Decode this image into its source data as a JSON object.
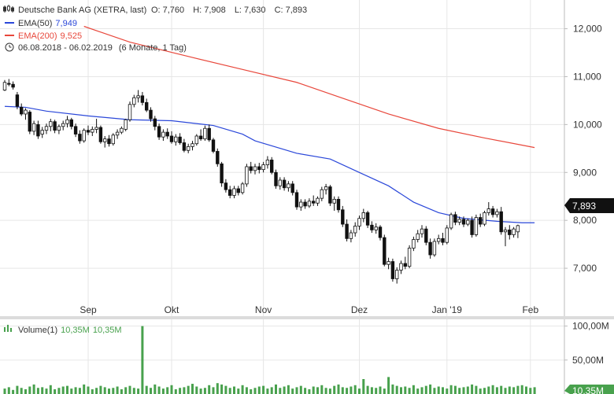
{
  "header": {
    "title": "Deutsche Bank AG (XETRA, last)",
    "ohlc": {
      "o_label": "O:",
      "o": "7,760",
      "h_label": "H:",
      "h": "7,908",
      "l_label": "L:",
      "l": "7,630",
      "c_label": "C:",
      "c": "7,893"
    },
    "ema50_label": "EMA(50)",
    "ema50_value": "7,949",
    "ema200_label": "EMA(200)",
    "ema200_value": "9,525",
    "period": "06.08.2018 - 06.02.2019",
    "period_detail": "(6 Monate, 1 Tag)"
  },
  "volume_header": {
    "label": "Volume(1)",
    "value1": "10,35M",
    "value2": "10,35M"
  },
  "colors": {
    "ema50": "#2a47d9",
    "ema200": "#e8473b",
    "volume": "#48a14d",
    "candle": "#111111",
    "grid": "#e6e6e6",
    "badge": "#111111"
  },
  "chart_data": {
    "type": "line",
    "price_axis": {
      "ticks": [
        "7,000",
        "8,000",
        "9,000",
        "10,000",
        "11,000",
        "12,000"
      ],
      "ylim": [
        6.0,
        12.6
      ]
    },
    "volume_axis": {
      "ticks": [
        "50,00M",
        "100,00M"
      ]
    },
    "x_ticks": [
      "Sep",
      "Okt",
      "Nov",
      "Dez",
      "Jan '19",
      "Feb"
    ],
    "last_price_badge": "7,893",
    "volume_badge": "10,35M",
    "candles": [
      [
        10.72,
        10.93,
        10.7,
        10.88
      ],
      [
        10.86,
        10.95,
        10.8,
        10.84
      ],
      [
        10.84,
        10.9,
        10.73,
        10.78
      ],
      [
        10.62,
        10.68,
        10.32,
        10.38
      ],
      [
        10.36,
        10.44,
        10.18,
        10.22
      ],
      [
        10.22,
        10.34,
        10.1,
        10.3
      ],
      [
        10.26,
        10.3,
        9.8,
        9.86
      ],
      [
        9.86,
        10.08,
        9.78,
        10.02
      ],
      [
        10.0,
        10.08,
        9.7,
        9.76
      ],
      [
        9.8,
        9.95,
        9.72,
        9.88
      ],
      [
        9.88,
        10.02,
        9.8,
        9.96
      ],
      [
        9.96,
        10.12,
        9.86,
        10.06
      ],
      [
        10.06,
        10.1,
        9.82,
        9.88
      ],
      [
        9.88,
        10.0,
        9.8,
        9.96
      ],
      [
        9.96,
        10.08,
        9.88,
        10.02
      ],
      [
        10.02,
        10.18,
        9.94,
        10.1
      ],
      [
        10.1,
        10.14,
        9.9,
        9.96
      ],
      [
        9.96,
        10.02,
        9.74,
        9.8
      ],
      [
        9.8,
        9.88,
        9.6,
        9.66
      ],
      [
        9.66,
        9.92,
        9.62,
        9.88
      ],
      [
        9.88,
        9.98,
        9.78,
        9.84
      ],
      [
        9.84,
        9.96,
        9.76,
        9.9
      ],
      [
        9.9,
        10.12,
        9.82,
        9.94
      ],
      [
        9.94,
        9.98,
        9.6,
        9.64
      ],
      [
        9.64,
        9.76,
        9.52,
        9.7
      ],
      [
        9.7,
        9.78,
        9.54,
        9.6
      ],
      [
        9.6,
        9.82,
        9.56,
        9.78
      ],
      [
        9.78,
        9.9,
        9.7,
        9.84
      ],
      [
        9.84,
        9.96,
        9.8,
        9.92
      ],
      [
        9.9,
        10.12,
        9.86,
        10.1
      ],
      [
        10.1,
        10.48,
        10.06,
        10.42
      ],
      [
        10.42,
        10.62,
        10.36,
        10.56
      ],
      [
        10.56,
        10.72,
        10.46,
        10.6
      ],
      [
        10.6,
        10.68,
        10.4,
        10.46
      ],
      [
        10.46,
        10.54,
        10.26,
        10.3
      ],
      [
        10.3,
        10.36,
        10.06,
        10.12
      ],
      [
        10.12,
        10.18,
        9.88,
        9.96
      ],
      [
        9.96,
        10.02,
        9.68,
        9.74
      ],
      [
        9.74,
        9.9,
        9.66,
        9.84
      ],
      [
        9.84,
        9.92,
        9.7,
        9.76
      ],
      [
        9.76,
        9.86,
        9.6,
        9.64
      ],
      [
        9.64,
        9.8,
        9.56,
        9.74
      ],
      [
        9.74,
        9.82,
        9.58,
        9.62
      ],
      [
        9.62,
        9.7,
        9.42,
        9.46
      ],
      [
        9.46,
        9.6,
        9.4,
        9.54
      ],
      [
        9.54,
        9.66,
        9.46,
        9.6
      ],
      [
        9.6,
        9.8,
        9.56,
        9.76
      ],
      [
        9.76,
        9.9,
        9.66,
        9.7
      ],
      [
        9.7,
        9.98,
        9.66,
        9.92
      ],
      [
        9.92,
        10.0,
        9.64,
        9.68
      ],
      [
        9.68,
        9.72,
        9.4,
        9.44
      ],
      [
        9.44,
        9.5,
        9.12,
        9.18
      ],
      [
        9.18,
        9.22,
        8.7,
        8.78
      ],
      [
        8.78,
        8.86,
        8.58,
        8.64
      ],
      [
        8.64,
        8.72,
        8.46,
        8.52
      ],
      [
        8.52,
        8.72,
        8.46,
        8.66
      ],
      [
        8.66,
        8.72,
        8.52,
        8.58
      ],
      [
        8.58,
        8.8,
        8.54,
        8.76
      ],
      [
        8.76,
        9.18,
        8.7,
        9.12
      ],
      [
        9.12,
        9.22,
        8.98,
        9.04
      ],
      [
        9.04,
        9.18,
        8.96,
        9.12
      ],
      [
        9.12,
        9.2,
        8.98,
        9.06
      ],
      [
        9.06,
        9.22,
        9.0,
        9.16
      ],
      [
        9.16,
        9.34,
        9.08,
        9.26
      ],
      [
        9.26,
        9.32,
        8.96,
        9.0
      ],
      [
        9.0,
        9.06,
        8.66,
        8.72
      ],
      [
        8.72,
        8.9,
        8.64,
        8.84
      ],
      [
        8.84,
        8.9,
        8.62,
        8.68
      ],
      [
        8.68,
        8.82,
        8.6,
        8.76
      ],
      [
        8.76,
        8.82,
        8.52,
        8.58
      ],
      [
        8.58,
        8.64,
        8.22,
        8.28
      ],
      [
        8.28,
        8.44,
        8.2,
        8.38
      ],
      [
        8.38,
        8.44,
        8.24,
        8.3
      ],
      [
        8.3,
        8.46,
        8.26,
        8.4
      ],
      [
        8.4,
        8.52,
        8.3,
        8.36
      ],
      [
        8.36,
        8.5,
        8.3,
        8.46
      ],
      [
        8.46,
        8.7,
        8.4,
        8.64
      ],
      [
        8.64,
        8.76,
        8.54,
        8.7
      ],
      [
        8.7,
        8.74,
        8.3,
        8.36
      ],
      [
        8.36,
        8.5,
        8.2,
        8.44
      ],
      [
        8.44,
        8.5,
        8.16,
        8.22
      ],
      [
        8.22,
        8.3,
        7.86,
        7.92
      ],
      [
        7.92,
        8.02,
        7.56,
        7.62
      ],
      [
        7.62,
        7.8,
        7.54,
        7.74
      ],
      [
        7.74,
        7.96,
        7.66,
        7.88
      ],
      [
        7.88,
        8.1,
        7.8,
        8.04
      ],
      [
        8.04,
        8.24,
        7.96,
        8.16
      ],
      [
        8.16,
        8.2,
        7.84,
        7.9
      ],
      [
        7.9,
        7.98,
        7.74,
        7.8
      ],
      [
        7.8,
        7.94,
        7.72,
        7.86
      ],
      [
        7.86,
        7.9,
        7.58,
        7.64
      ],
      [
        7.64,
        7.7,
        7.04,
        7.08
      ],
      [
        7.08,
        7.22,
        6.98,
        7.14
      ],
      [
        7.14,
        7.2,
        6.72,
        6.78
      ],
      [
        6.78,
        7.02,
        6.68,
        6.96
      ],
      [
        6.96,
        7.16,
        6.88,
        7.1
      ],
      [
        7.1,
        7.24,
        6.98,
        7.04
      ],
      [
        7.04,
        7.48,
        7.0,
        7.42
      ],
      [
        7.42,
        7.66,
        7.36,
        7.6
      ],
      [
        7.6,
        7.8,
        7.54,
        7.72
      ],
      [
        7.72,
        7.9,
        7.64,
        7.82
      ],
      [
        7.82,
        7.88,
        7.48,
        7.54
      ],
      [
        7.54,
        7.62,
        7.2,
        7.28
      ],
      [
        7.28,
        7.62,
        7.24,
        7.56
      ],
      [
        7.56,
        7.7,
        7.5,
        7.62
      ],
      [
        7.62,
        7.74,
        7.48,
        7.54
      ],
      [
        7.54,
        7.9,
        7.5,
        7.84
      ],
      [
        7.84,
        8.16,
        7.8,
        8.12
      ],
      [
        8.12,
        8.18,
        7.9,
        7.96
      ],
      [
        7.96,
        8.08,
        7.9,
        8.02
      ],
      [
        8.02,
        8.08,
        7.86,
        7.92
      ],
      [
        7.92,
        8.04,
        7.88,
        8.0
      ],
      [
        8.0,
        8.08,
        7.64,
        7.7
      ],
      [
        7.7,
        8.12,
        7.66,
        8.06
      ],
      [
        8.06,
        8.14,
        7.86,
        7.92
      ],
      [
        7.92,
        8.2,
        7.88,
        8.16
      ],
      [
        8.16,
        8.38,
        8.1,
        8.24
      ],
      [
        8.24,
        8.3,
        8.06,
        8.12
      ],
      [
        8.12,
        8.24,
        8.06,
        8.18
      ],
      [
        8.18,
        8.28,
        7.7,
        7.76
      ],
      [
        7.76,
        7.86,
        7.46,
        7.8
      ],
      [
        7.8,
        7.9,
        7.6,
        7.7
      ],
      [
        7.7,
        7.86,
        7.64,
        7.82
      ],
      [
        7.76,
        7.91,
        7.63,
        7.89
      ]
    ],
    "ema50": [
      [
        0,
        10.38
      ],
      [
        5,
        10.36
      ],
      [
        10,
        10.28
      ],
      [
        20,
        10.18
      ],
      [
        30,
        10.1
      ],
      [
        40,
        10.08
      ],
      [
        50,
        9.98
      ],
      [
        57,
        9.8
      ],
      [
        60,
        9.66
      ],
      [
        70,
        9.4
      ],
      [
        78,
        9.28
      ],
      [
        85,
        9.0
      ],
      [
        92,
        8.72
      ],
      [
        98,
        8.38
      ],
      [
        104,
        8.16
      ],
      [
        110,
        8.04
      ],
      [
        118,
        7.98
      ],
      [
        124,
        7.95
      ],
      [
        127,
        7.95
      ]
    ],
    "ema200": [
      [
        19,
        12.05
      ],
      [
        30,
        11.72
      ],
      [
        45,
        11.4
      ],
      [
        57,
        11.15
      ],
      [
        70,
        10.88
      ],
      [
        80,
        10.58
      ],
      [
        92,
        10.22
      ],
      [
        104,
        9.92
      ],
      [
        115,
        9.72
      ],
      [
        127,
        9.52
      ]
    ],
    "volume_peak_index": 33,
    "volume": [
      8,
      10,
      6,
      12,
      9,
      7,
      11,
      14,
      9,
      10,
      8,
      13,
      7,
      9,
      11,
      12,
      8,
      10,
      9,
      14,
      11,
      7,
      9,
      12,
      10,
      8,
      9,
      11,
      7,
      10,
      12,
      9,
      8,
      100,
      12,
      9,
      14,
      11,
      8,
      10,
      13,
      7,
      9,
      10,
      12,
      15,
      11,
      8,
      9,
      13,
      10,
      16,
      14,
      12,
      9,
      11,
      8,
      13,
      10,
      7,
      9,
      11,
      12,
      8,
      10,
      14,
      9,
      11,
      13,
      8,
      10,
      12,
      9,
      7,
      11,
      10,
      13,
      9,
      8,
      12,
      14,
      10,
      9,
      11,
      13,
      8,
      22,
      12,
      10,
      9,
      11,
      8,
      25,
      14,
      12,
      10,
      11,
      9,
      13,
      8,
      10,
      12,
      14,
      9,
      11,
      10,
      8,
      13,
      12,
      9,
      10,
      11,
      14,
      12,
      8,
      9,
      11,
      13,
      10,
      12,
      9,
      11,
      10,
      12,
      13,
      11,
      9,
      10
    ]
  }
}
